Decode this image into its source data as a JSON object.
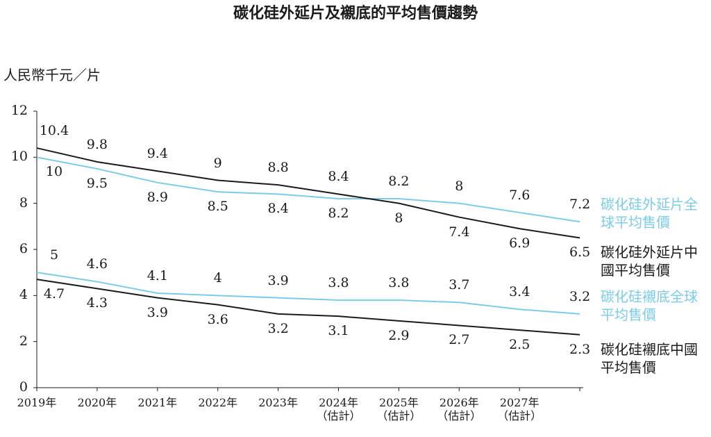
{
  "chart_data": {
    "type": "line",
    "title": "碳化硅外延片及襯底的平均售價趨勢",
    "y_label": "人民幣千元／片",
    "categories": [
      "2019年",
      "2020年",
      "2021年",
      "2022年",
      "2023年",
      "2024年\n（估計）",
      "2025年\n（估計）",
      "2026年\n（估計）",
      "2027年\n（估計）",
      null
    ],
    "series": [
      {
        "name": "碳化硅外延片全球平均售價",
        "color": "#7ccbe8",
        "values": [
          10.0,
          9.5,
          8.9,
          8.5,
          8.4,
          8.2,
          8.2,
          8.0,
          7.6,
          7.2
        ]
      },
      {
        "name": "碳化硅外延片中國平均售價",
        "color": "#1a1a1a",
        "values": [
          10.4,
          9.8,
          9.4,
          9.0,
          8.8,
          8.4,
          8.0,
          7.4,
          6.9,
          6.5
        ]
      },
      {
        "name": "碳化硅襯底全球平均售價",
        "color": "#7ccbe8",
        "values": [
          5.0,
          4.6,
          4.1,
          4.0,
          3.9,
          3.8,
          3.8,
          3.7,
          3.4,
          3.2
        ]
      },
      {
        "name": "碳化硅襯底中國平均售價",
        "color": "#1a1a1a",
        "values": [
          4.7,
          4.3,
          3.9,
          3.6,
          3.2,
          3.1,
          2.9,
          2.7,
          2.5,
          2.3
        ]
      }
    ],
    "ylim": [
      0,
      12
    ],
    "yticks": [
      0,
      2,
      4,
      6,
      8,
      10,
      12
    ]
  }
}
